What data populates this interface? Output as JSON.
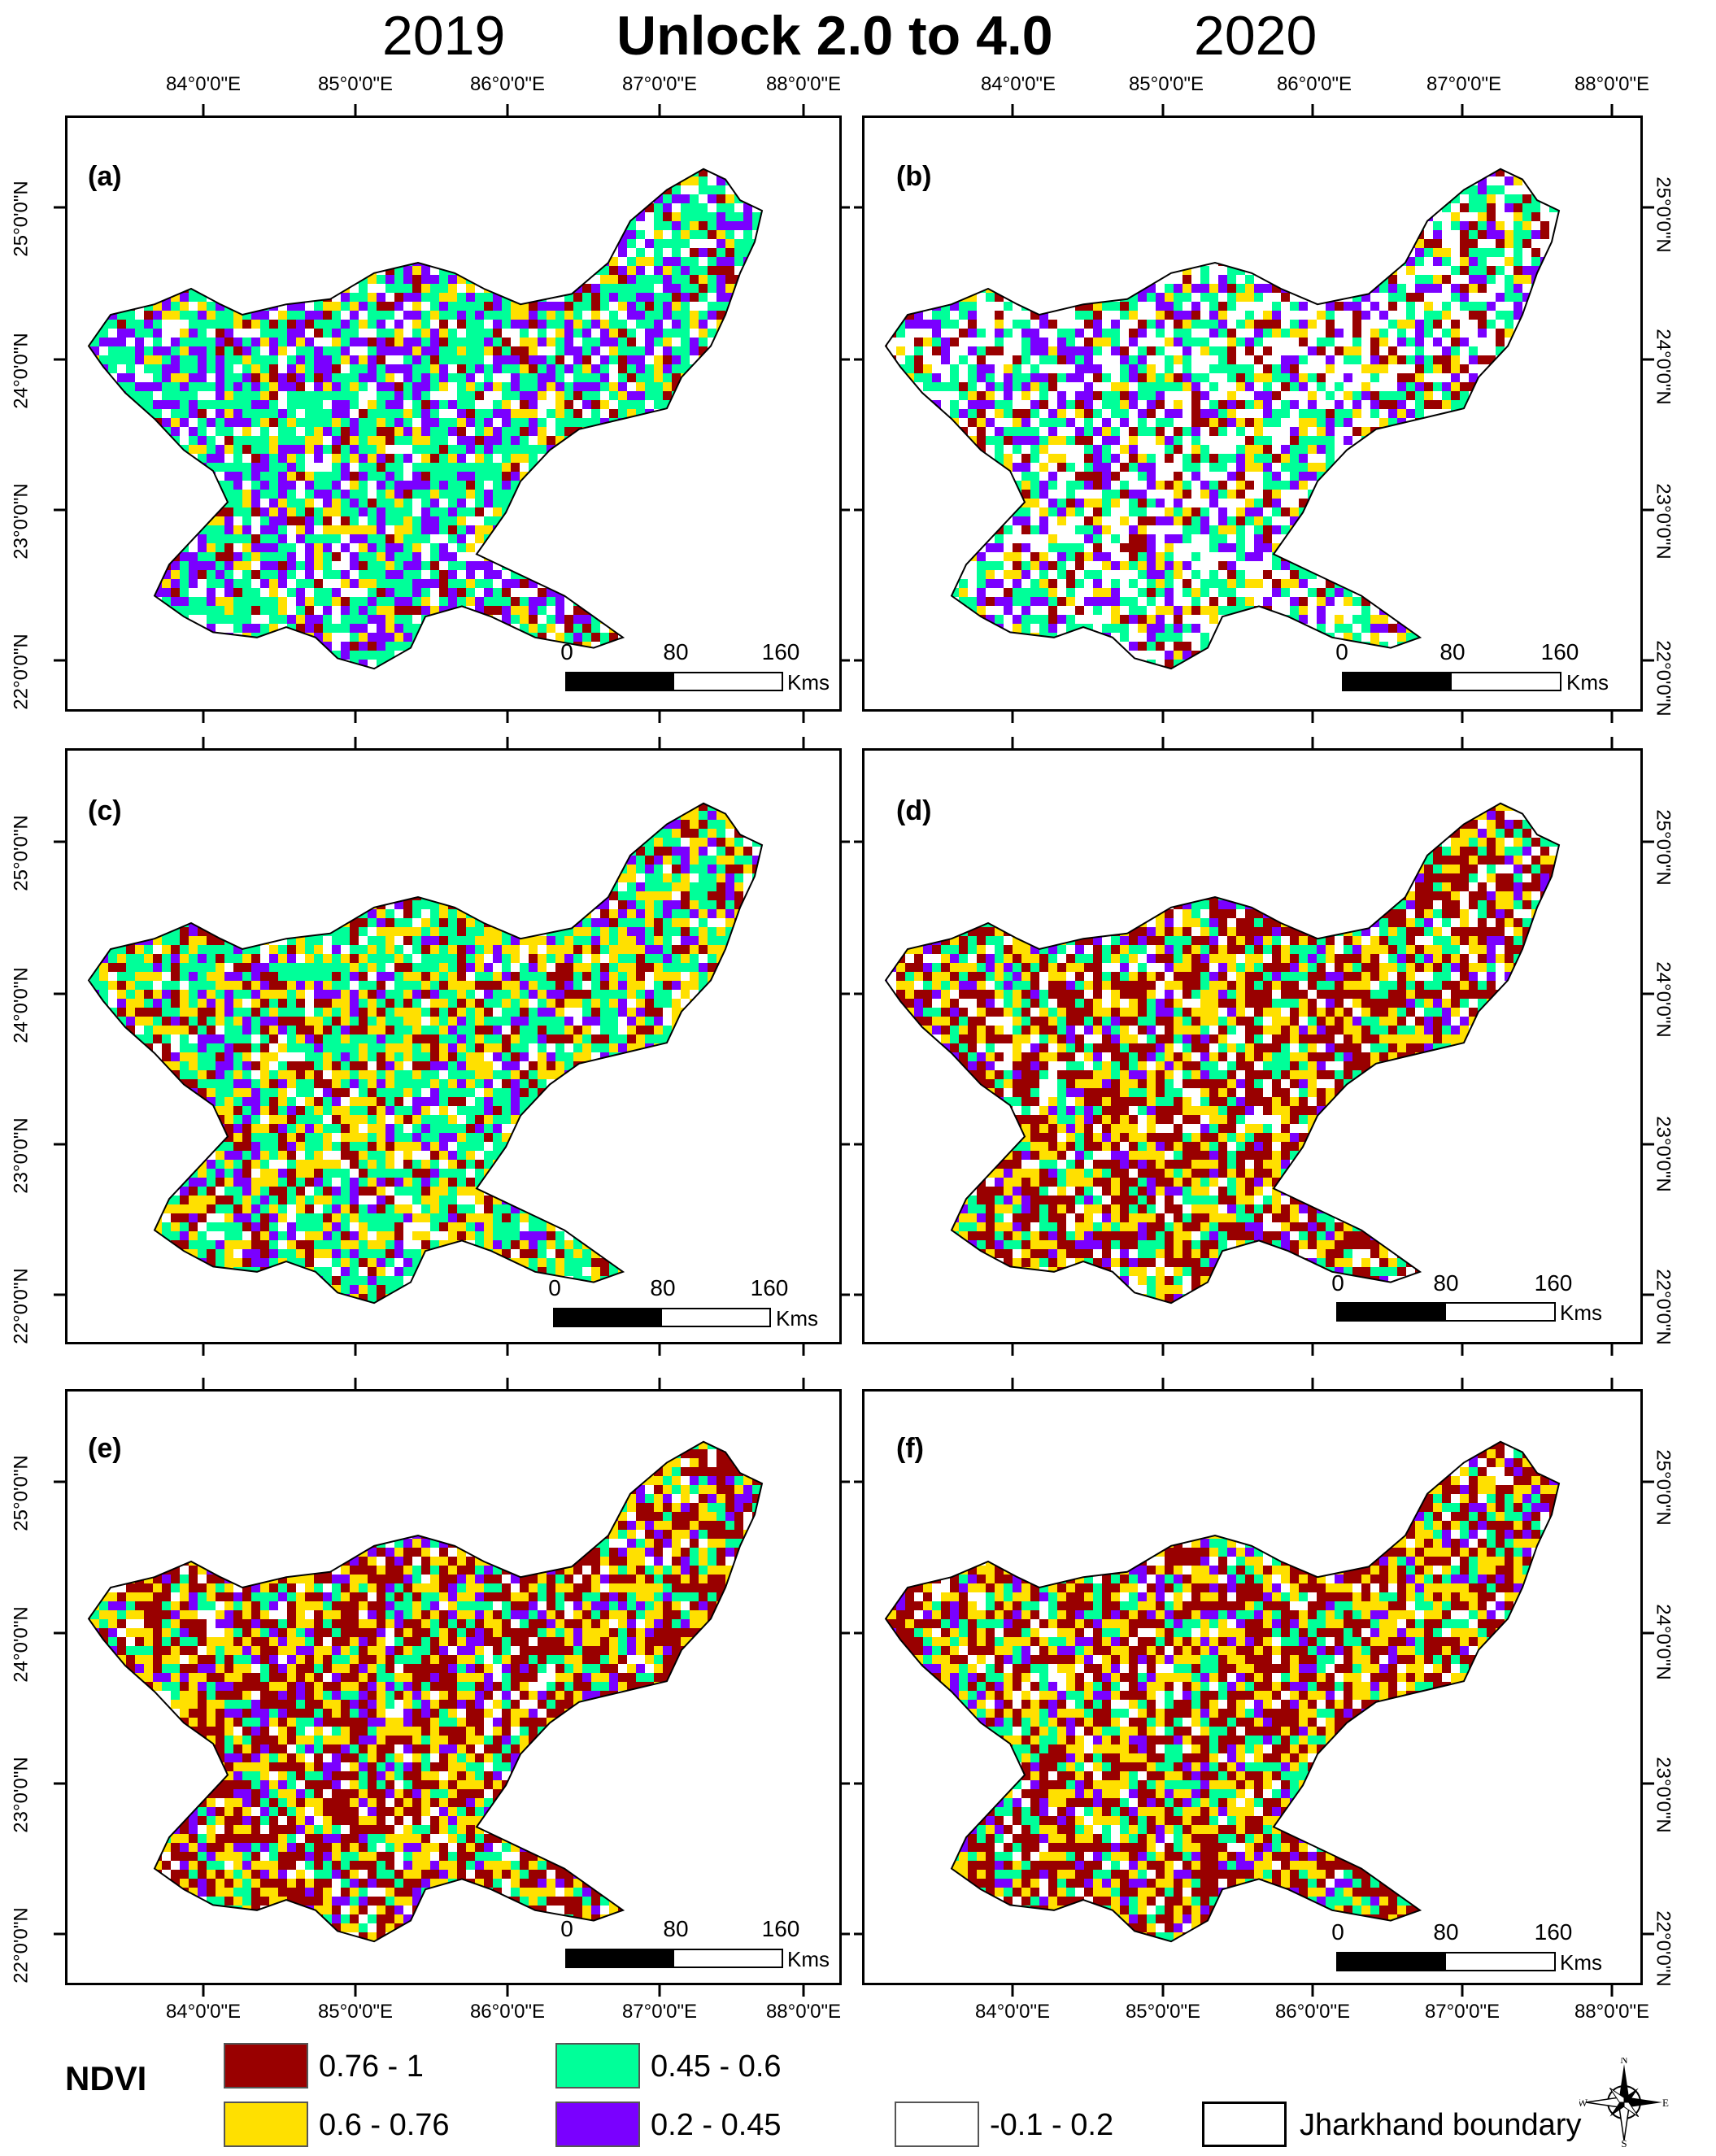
{
  "header": {
    "year_left": "2019",
    "title": "Unlock 2.0 to 4.0",
    "year_right": "2020"
  },
  "axes": {
    "lon_labels": [
      "84°0'0\"E",
      "85°0'0\"E",
      "86°0'0\"E",
      "87°0'0\"E",
      "88°0'0\"E"
    ],
    "lat_labels": [
      "25°0'0\"N",
      "24°0'0\"N",
      "23°0'0\"N",
      "22°0'0\"N"
    ]
  },
  "panels": [
    {
      "label": "(a)",
      "dominant": [
        "#00ff99",
        "#7a00ff",
        "#ffffff",
        "#ffe000",
        "#990000"
      ]
    },
    {
      "label": "(b)",
      "dominant": [
        "#ffffff",
        "#00ff99",
        "#7a00ff",
        "#990000",
        "#ffe000"
      ]
    },
    {
      "label": "(c)",
      "dominant": [
        "#00ff99",
        "#ffe000",
        "#990000",
        "#7a00ff",
        "#ffffff"
      ]
    },
    {
      "label": "(d)",
      "dominant": [
        "#990000",
        "#ffe000",
        "#00ff99",
        "#ffffff",
        "#7a00ff"
      ]
    },
    {
      "label": "(e)",
      "dominant": [
        "#990000",
        "#ffe000",
        "#00ff99",
        "#7a00ff",
        "#ffffff"
      ]
    },
    {
      "label": "(f)",
      "dominant": [
        "#990000",
        "#ffe000",
        "#00ff99",
        "#7a00ff",
        "#ffffff"
      ]
    }
  ],
  "scalebar": {
    "ticks": [
      "0",
      "80",
      "160"
    ],
    "unit": "Kms"
  },
  "legend": {
    "title": "NDVI",
    "items": [
      {
        "label": "0.76 - 1",
        "color": "#990000"
      },
      {
        "label": "0.6 - 0.76",
        "color": "#ffe000"
      },
      {
        "label": "0.45 - 0.6",
        "color": "#00ff99"
      },
      {
        "label": "0.2 - 0.45",
        "color": "#7a00ff"
      },
      {
        "label": "-0.1 - 0.2",
        "color": "#ffffff"
      }
    ],
    "boundary_label": "Jharkhand boundary"
  },
  "north_arrow": {
    "n": "N",
    "s": "S",
    "e": "E",
    "w": "W"
  }
}
